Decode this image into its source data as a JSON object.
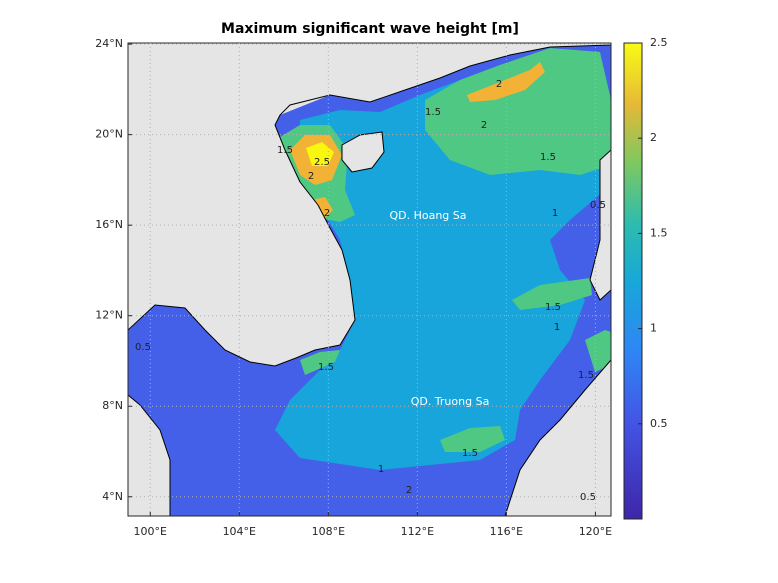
{
  "title": "Maximum significant wave height [m]",
  "map": {
    "xlim": [
      99,
      120.7
    ],
    "ylim": [
      3.15,
      24.05
    ],
    "xticks": [
      {
        "value": 100,
        "label": "100°E"
      },
      {
        "value": 104,
        "label": "104°E"
      },
      {
        "value": 108,
        "label": "108°E"
      },
      {
        "value": 112,
        "label": "112°E"
      },
      {
        "value": 116,
        "label": "116°E"
      },
      {
        "value": 120,
        "label": "120°E"
      }
    ],
    "yticks": [
      {
        "value": 4,
        "label": "4°N"
      },
      {
        "value": 8,
        "label": "8°N"
      },
      {
        "value": 12,
        "label": "12°N"
      },
      {
        "value": 16,
        "label": "16°N"
      },
      {
        "value": 20,
        "label": "20°N"
      },
      {
        "value": 24,
        "label": "24°N"
      }
    ],
    "grid": true,
    "places": [
      "QD. Hoang Sa",
      "QD. Truong Sa"
    ],
    "contour_labels": [
      1.5,
      2,
      1.5,
      2,
      2.5,
      2,
      1.5,
      2,
      1,
      1.5,
      1,
      1.5,
      1.5,
      1.5,
      1,
      2,
      0.5,
      0.5,
      0.5
    ]
  },
  "colorbar": {
    "clim": [
      0,
      2.5
    ],
    "ticks": [
      0.5,
      1,
      1.5,
      2,
      2.5
    ]
  }
}
